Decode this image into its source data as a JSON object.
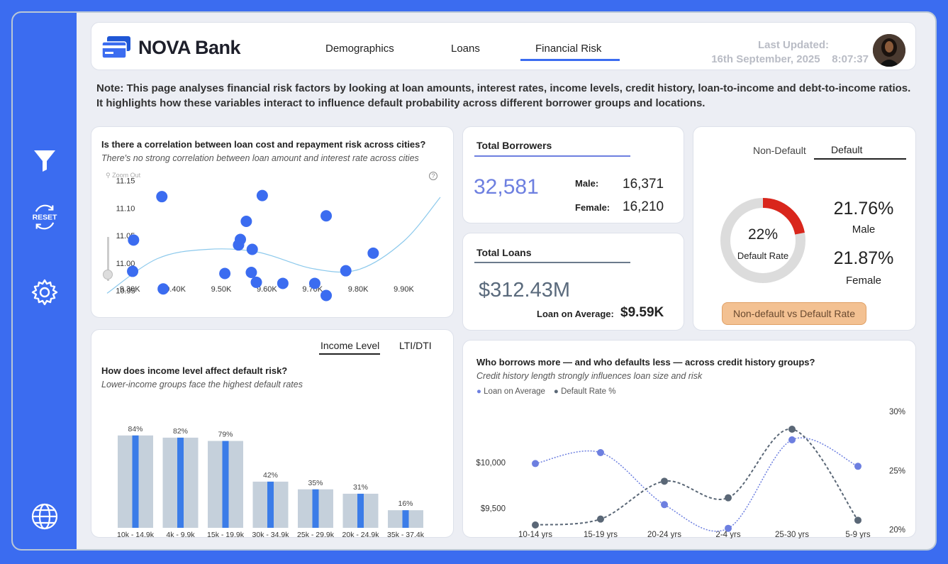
{
  "header": {
    "brand": "NOVA Bank",
    "tabs": [
      {
        "label": "Demographics",
        "active": false
      },
      {
        "label": "Loans",
        "active": false
      },
      {
        "label": "Financial Risk",
        "active": true
      }
    ],
    "last_updated_label": "Last Updated:",
    "last_updated_value": "16th September, 2025    8:07:37"
  },
  "sidebar": {
    "items": [
      "filter-icon",
      "reset-icon",
      "gear-icon",
      "globe-icon"
    ],
    "reset_label": "RESET"
  },
  "note": "Note: This page analyses financial risk factors by looking at loan amounts, interest rates, income levels, credit history, loan-to-income and debt-to-income ratios. It highlights how these variables interact to influence default probability across different borrower groups and locations.",
  "scatter_card": {
    "title": "Is there a correlation between loan cost and repayment risk across cities?",
    "subtitle": "There's no strong correlation between loan amount and interest rate across cities",
    "zoom_out": "Zoom Out",
    "help": "?"
  },
  "borrowers": {
    "label": "Total Borrowers",
    "total": "32,581",
    "male_label": "Male:",
    "male_value": "16,371",
    "female_label": "Female:",
    "female_value": "16,210"
  },
  "loans": {
    "label": "Total Loans",
    "total": "$312.43M",
    "avg_label": "Loan on Average:",
    "avg_value": "$9.59K"
  },
  "default_card": {
    "tabs": [
      {
        "label": "Non-Default",
        "active": false
      },
      {
        "label": "Default",
        "active": true
      }
    ],
    "donut_value": "22%",
    "donut_label": "Default Rate",
    "male_pct": "21.76%",
    "male_label": "Male",
    "female_pct": "21.87%",
    "female_label": "Female",
    "button": "Non-default vs Default Rate",
    "colors": {
      "default": "#d9261c",
      "track": "#dcdcdc"
    }
  },
  "income_card": {
    "tabs": [
      {
        "label": "Income Level",
        "active": true
      },
      {
        "label": "LTI/DTI",
        "active": false
      }
    ],
    "title": "How does income level affect default risk?",
    "subtitle": "Lower-income groups face the highest default rates"
  },
  "credit_card": {
    "title": "Who borrows more — and who defaults less — across credit history groups?",
    "subtitle": "Credit history length strongly influences loan size and risk"
  },
  "chart_data": [
    {
      "type": "scatter",
      "x_ticks": [
        "9.30K",
        "9.40K",
        "9.50K",
        "9.60K",
        "9.70K",
        "9.80K",
        "9.90K"
      ],
      "y_ticks": [
        "11.15",
        "11.10",
        "11.05",
        "11.00",
        "10.95"
      ],
      "xlim": [
        9250,
        9980
      ],
      "ylim": [
        10.93,
        11.16
      ],
      "points": [
        {
          "x": 9370,
          "y": 11.121
        },
        {
          "x": 9590,
          "y": 11.123
        },
        {
          "x": 9555,
          "y": 11.076
        },
        {
          "x": 9730,
          "y": 11.086
        },
        {
          "x": 9308,
          "y": 11.042
        },
        {
          "x": 9542,
          "y": 11.043
        },
        {
          "x": 9538,
          "y": 11.033
        },
        {
          "x": 9568,
          "y": 11.025
        },
        {
          "x": 9833,
          "y": 11.018
        },
        {
          "x": 9306,
          "y": 10.985
        },
        {
          "x": 9508,
          "y": 10.981
        },
        {
          "x": 9566,
          "y": 10.983
        },
        {
          "x": 9577,
          "y": 10.965
        },
        {
          "x": 9635,
          "y": 10.963
        },
        {
          "x": 9705,
          "y": 10.963
        },
        {
          "x": 9773,
          "y": 10.986
        },
        {
          "x": 9373,
          "y": 10.953
        },
        {
          "x": 9730,
          "y": 10.941
        }
      ],
      "trend": [
        {
          "x": 9250,
          "y": 10.945
        },
        {
          "x": 9360,
          "y": 11.008
        },
        {
          "x": 9470,
          "y": 11.025
        },
        {
          "x": 9580,
          "y": 11.02
        },
        {
          "x": 9700,
          "y": 10.99
        },
        {
          "x": 9800,
          "y": 10.988
        },
        {
          "x": 9900,
          "y": 11.04
        },
        {
          "x": 9980,
          "y": 11.12
        }
      ],
      "colors": {
        "points": "#3b6cf0",
        "trend": "#8cc9ec"
      }
    },
    {
      "type": "bar",
      "categories": [
        "10k - 14.9k",
        "4k - 9.9k",
        "15k - 19.9k",
        "30k - 34.9k",
        "25k - 29.9k",
        "20k - 24.9k",
        "35k - 37.4k"
      ],
      "values": [
        84,
        82,
        79,
        42,
        35,
        31,
        16
      ],
      "data_labels": [
        "84%",
        "82%",
        "79%",
        "42%",
        "35%",
        "31%",
        "16%"
      ],
      "ylim": [
        0,
        100
      ],
      "colors": {
        "bar": "#c5d0db",
        "inner": "#3b7ce8"
      }
    },
    {
      "type": "line",
      "categories": [
        "10-14 yrs",
        "15-19 yrs",
        "20-24 yrs",
        "2-4 yrs",
        "25-30 yrs",
        "5-9 yrs"
      ],
      "legend": [
        "Loan on Average",
        "Default Rate %"
      ],
      "series": [
        {
          "name": "Loan on Average",
          "values": [
            9990,
            10110,
            9540,
            9280,
            10250,
            9960
          ],
          "axis": "left",
          "color": "#6d7fe0"
        },
        {
          "name": "Default Rate %",
          "values": [
            20.4,
            20.9,
            24.1,
            22.7,
            28.5,
            20.8
          ],
          "axis": "right",
          "color": "#5a6776"
        }
      ],
      "left_ticks": [
        "$10,000",
        "$9,500"
      ],
      "right_ticks": [
        "30%",
        "25%",
        "20%"
      ],
      "left_ylim": [
        9200,
        10600
      ],
      "right_ylim": [
        19.5,
        30.3
      ]
    }
  ]
}
